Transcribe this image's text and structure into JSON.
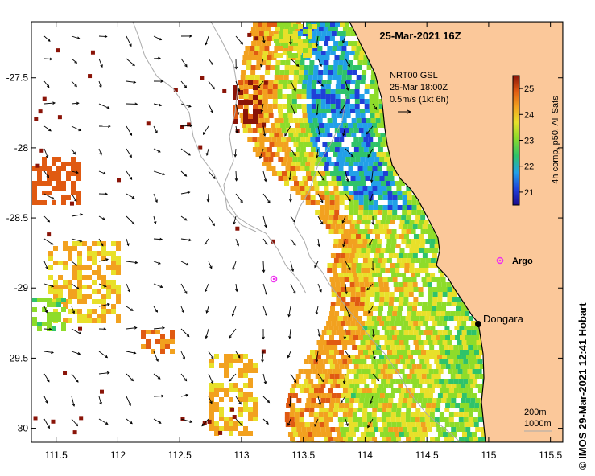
{
  "map": {
    "title": "25-Mar-2021 16Z",
    "current_legend": {
      "line1": "NRT00 GSL",
      "line2": "25-Mar 18:00Z",
      "line3": "0.5m/s (1kt 6h)"
    },
    "colorbar": {
      "label": "4h comp, p50, All Sats",
      "ticks": [
        "25",
        "24",
        "23",
        "22",
        "21"
      ],
      "range": [
        20.5,
        25.5
      ]
    },
    "places": {
      "dongara": "Dongara",
      "argo": "Argo"
    },
    "depth_legend": {
      "line1": "200m",
      "line2": "1000m"
    },
    "credit": "© IMOS 29-Mar-2021 12:41 Hobart",
    "axes": {
      "x_ticks": [
        "111.5",
        "112",
        "112.5",
        "113",
        "113.5",
        "114",
        "114.5",
        "115",
        "115.5"
      ],
      "y_ticks": [
        "-27.5",
        "-28",
        "-28.5",
        "-29",
        "-29.5",
        "-30"
      ],
      "x_range": [
        111.3,
        115.6
      ],
      "y_range": [
        -30.1,
        -27.1
      ]
    },
    "colors": {
      "land": "#fbc89a",
      "frame": "#000000",
      "bathymetry": "#aaaaaa",
      "argo": "#ee33ee"
    }
  }
}
